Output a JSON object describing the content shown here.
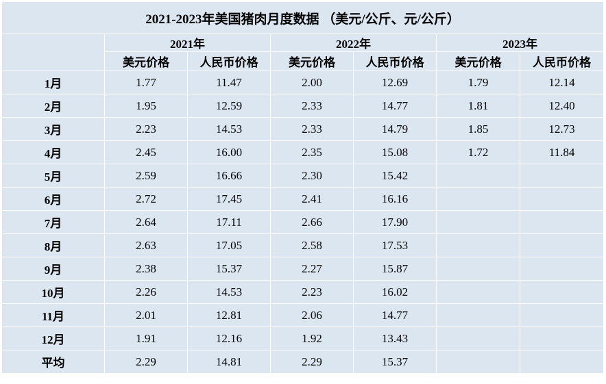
{
  "title": "2021-2023年美国猪肉月度数据 （美元/公斤、元/公斤）",
  "years": [
    "2021年",
    "2022年",
    "2023年"
  ],
  "sub_headers": {
    "usd": "美元价格",
    "cny": "人民币价格"
  },
  "rows": [
    {
      "label": "1月",
      "v": [
        "1.77",
        "11.47",
        "2.00",
        "12.69",
        "1.79",
        "12.14"
      ]
    },
    {
      "label": "2月",
      "v": [
        "1.95",
        "12.59",
        "2.33",
        "14.77",
        "1.81",
        "12.40"
      ]
    },
    {
      "label": "3月",
      "v": [
        "2.23",
        "14.53",
        "2.33",
        "14.79",
        "1.85",
        "12.73"
      ]
    },
    {
      "label": "4月",
      "v": [
        "2.45",
        "16.00",
        "2.35",
        "15.08",
        "1.72",
        "11.84"
      ]
    },
    {
      "label": "5月",
      "v": [
        "2.59",
        "16.66",
        "2.30",
        "15.42",
        "",
        ""
      ]
    },
    {
      "label": "6月",
      "v": [
        "2.72",
        "17.45",
        "2.41",
        "16.16",
        "",
        ""
      ]
    },
    {
      "label": "7月",
      "v": [
        "2.64",
        "17.11",
        "2.66",
        "17.90",
        "",
        ""
      ]
    },
    {
      "label": "8月",
      "v": [
        "2.63",
        "17.05",
        "2.58",
        "17.53",
        "",
        ""
      ]
    },
    {
      "label": "9月",
      "v": [
        "2.38",
        "15.37",
        "2.27",
        "15.87",
        "",
        ""
      ]
    },
    {
      "label": "10月",
      "v": [
        "2.26",
        "14.53",
        "2.23",
        "16.02",
        "",
        ""
      ]
    },
    {
      "label": "11月",
      "v": [
        "2.01",
        "12.81",
        "2.06",
        "14.77",
        "",
        ""
      ]
    },
    {
      "label": "12月",
      "v": [
        "1.91",
        "12.16",
        "1.92",
        "13.43",
        "",
        ""
      ]
    },
    {
      "label": "平均",
      "v": [
        "2.29",
        "14.81",
        "2.29",
        "15.37",
        "",
        ""
      ]
    }
  ],
  "colors": {
    "cell_background": "#dce6f1",
    "border": "#ffffff"
  }
}
